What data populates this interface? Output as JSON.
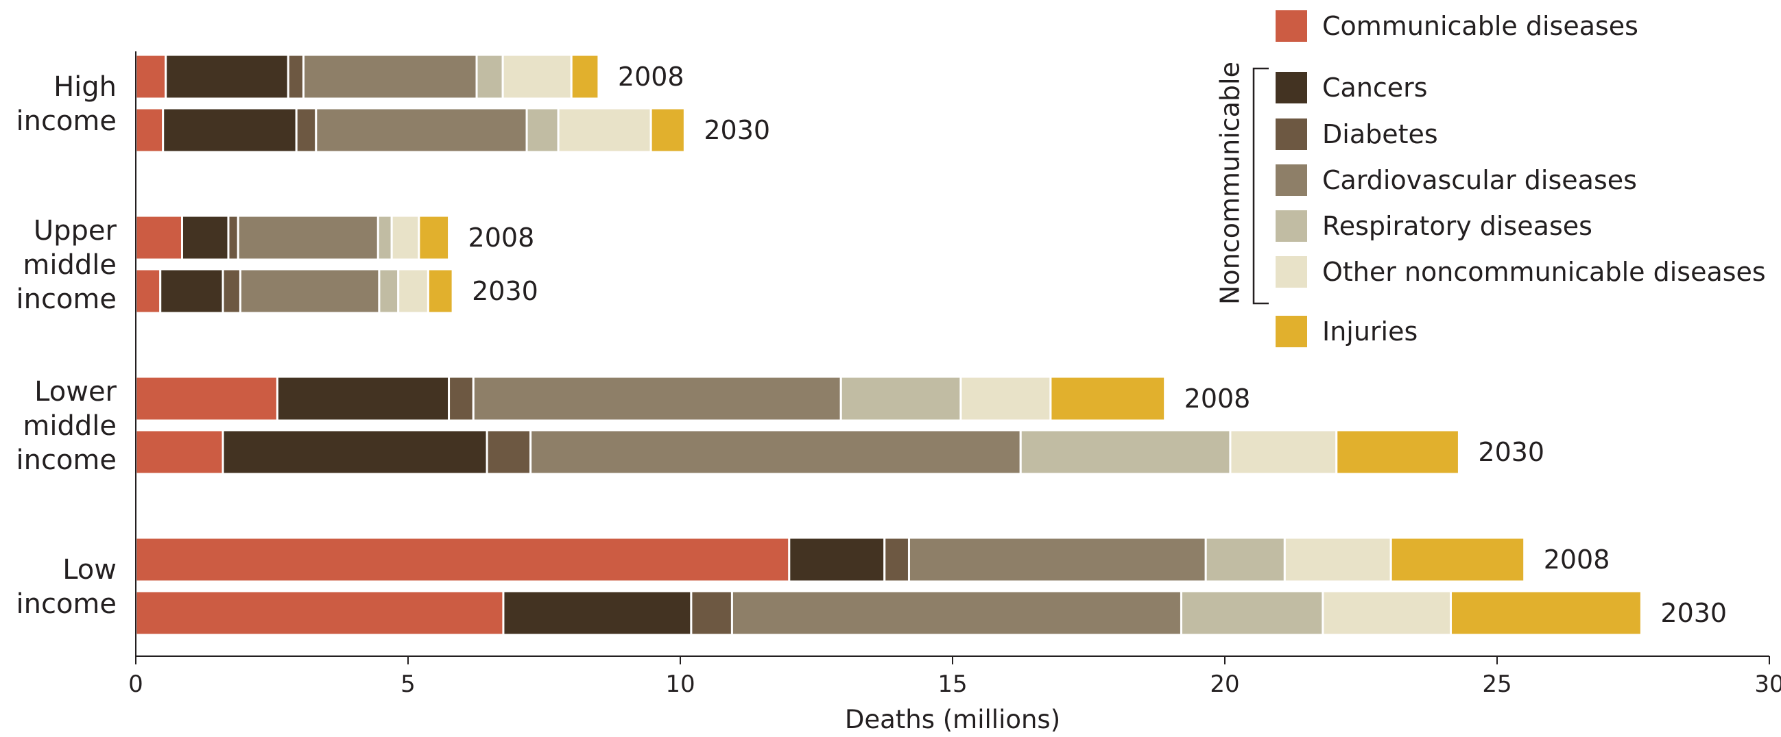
{
  "chart_data": {
    "type": "bar",
    "orientation": "horizontal",
    "stacked": true,
    "xlabel": "Deaths (millions)",
    "xlim": [
      0,
      30
    ],
    "xticks": [
      0,
      5,
      10,
      15,
      20,
      25,
      30
    ],
    "grid": false,
    "legend_placement": "top-right",
    "legend_group_label": "Noncommunicable",
    "legend_group_members": [
      1,
      2,
      3,
      4,
      5
    ],
    "groups": [
      {
        "label_lines": [
          "High",
          "income"
        ],
        "bars": [
          {
            "year": "2008",
            "values": [
              0.55,
              2.25,
              0.28,
              3.18,
              0.48,
              1.26,
              0.5
            ]
          },
          {
            "year": "2030",
            "values": [
              0.5,
              2.45,
              0.36,
              3.87,
              0.58,
              1.7,
              0.62
            ]
          }
        ]
      },
      {
        "label_lines": [
          "Upper",
          "middle",
          "income"
        ],
        "bars": [
          {
            "year": "2008",
            "values": [
              0.85,
              0.85,
              0.18,
              2.57,
              0.25,
              0.5,
              0.55
            ]
          },
          {
            "year": "2030",
            "values": [
              0.45,
              1.15,
              0.32,
              2.55,
              0.35,
              0.55,
              0.45
            ]
          }
        ]
      },
      {
        "label_lines": [
          "Lower",
          "middle",
          "income"
        ],
        "bars": [
          {
            "year": "2008",
            "values": [
              2.6,
              3.15,
              0.45,
              6.75,
              2.2,
              1.65,
              2.1
            ]
          },
          {
            "year": "2030",
            "values": [
              1.6,
              4.85,
              0.8,
              9.0,
              3.85,
              1.95,
              2.25
            ]
          }
        ]
      },
      {
        "label_lines": [
          "Low",
          "income"
        ],
        "bars": [
          {
            "year": "2008",
            "values": [
              12.0,
              1.75,
              0.45,
              5.45,
              1.45,
              1.95,
              2.45
            ]
          },
          {
            "year": "2030",
            "values": [
              6.75,
              3.45,
              0.75,
              8.25,
              2.6,
              2.35,
              3.5
            ]
          }
        ]
      }
    ],
    "series": [
      {
        "name": "Communicable diseases",
        "color": "#cc5c43"
      },
      {
        "name": "Cancers",
        "color": "#433322"
      },
      {
        "name": "Diabetes",
        "color": "#6d5842"
      },
      {
        "name": "Cardiovascular diseases",
        "color": "#8e7f68"
      },
      {
        "name": "Respiratory diseases",
        "color": "#c1bca3"
      },
      {
        "name": "Other noncommunicable diseases",
        "color": "#e8e2c8"
      },
      {
        "name": "Injuries",
        "color": "#e1b02d"
      }
    ]
  }
}
